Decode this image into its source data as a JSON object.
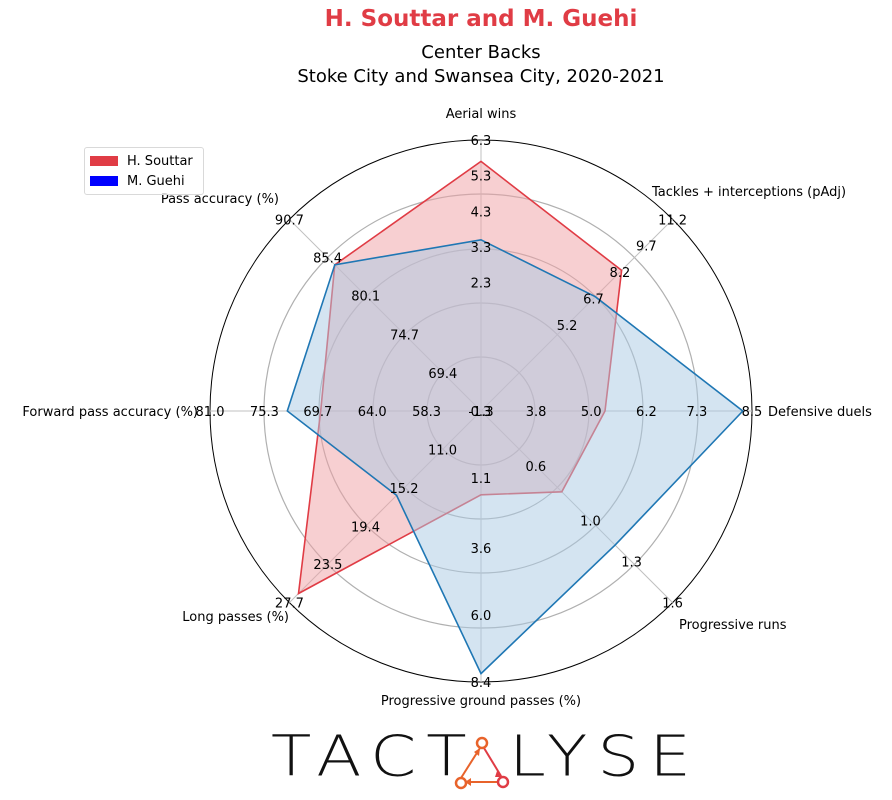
{
  "title": "H. Souttar and M. Guehi",
  "subtitle_line1": "Center Backs",
  "subtitle_line2": "Stoke City and Swansea City, 2020-2021",
  "legend": [
    {
      "name": "H. Souttar",
      "color": "#e03c45"
    },
    {
      "name": "M. Guehi",
      "color": "#0000ff"
    }
  ],
  "logo": {
    "left": "TACT",
    "right": "LYSE",
    "mark": "triangle-network-icon"
  },
  "chart_data": {
    "type": "radar",
    "title": "H. Souttar and M. Guehi",
    "axes": [
      {
        "label": "Aerial wins",
        "ticks": [
          "-1.3",
          "2.3",
          "3.3",
          "4.3",
          "5.3",
          "6.3"
        ],
        "range": [
          -1.3,
          6.3
        ]
      },
      {
        "label": "Tackles + interceptions (pAdj)",
        "ticks": [
          "0.3",
          "5.2",
          "6.7",
          "8.2",
          "9.7",
          "11.2"
        ],
        "range": [
          0.3,
          11.2
        ]
      },
      {
        "label": "Defensive duels",
        "ticks": [
          "3.8",
          "5.0",
          "6.2",
          "7.3",
          "8.5"
        ],
        "range": [
          2.6,
          8.5
        ]
      },
      {
        "label": "Progressive runs",
        "ticks": [
          "0.6",
          "1.0",
          "1.3",
          "1.6"
        ],
        "range": [
          0.2,
          1.6
        ]
      },
      {
        "label": "Progressive ground passes (%)",
        "ticks": [
          "1.1",
          "3.6",
          "6.0",
          "8.4"
        ],
        "range": [
          -1.3,
          8.4
        ]
      },
      {
        "label": "Long passes (%)",
        "ticks": [
          "11.0",
          "15.2",
          "19.4",
          "23.5",
          "27.7"
        ],
        "range": [
          6.8,
          27.7
        ]
      },
      {
        "label": "Forward pass accuracy (%)",
        "ticks": [
          "58.3",
          "64.0",
          "69.7",
          "75.3",
          "81.0"
        ],
        "range": [
          52.6,
          81.0
        ]
      },
      {
        "label": "Pass accuracy (%)",
        "ticks": [
          "69.4",
          "74.7",
          "80.1",
          "85.4",
          "90.7"
        ],
        "range": [
          64.1,
          90.7
        ]
      }
    ],
    "series": [
      {
        "name": "H. Souttar",
        "color": "#e03c45",
        "fill": "#f0a0a4",
        "values": [
          5.7,
          8.3,
          5.3,
          0.79,
          1.7,
          26.7,
          69.4,
          84.4
        ]
      },
      {
        "name": "M. Guehi",
        "color": "#1f77b4",
        "fill": "#a9c9e3",
        "values": [
          3.5,
          6.8,
          8.3,
          1.18,
          8.1,
          16.0,
          72.9,
          84.4
        ]
      }
    ],
    "grid": true,
    "legend_position": "top-left"
  }
}
